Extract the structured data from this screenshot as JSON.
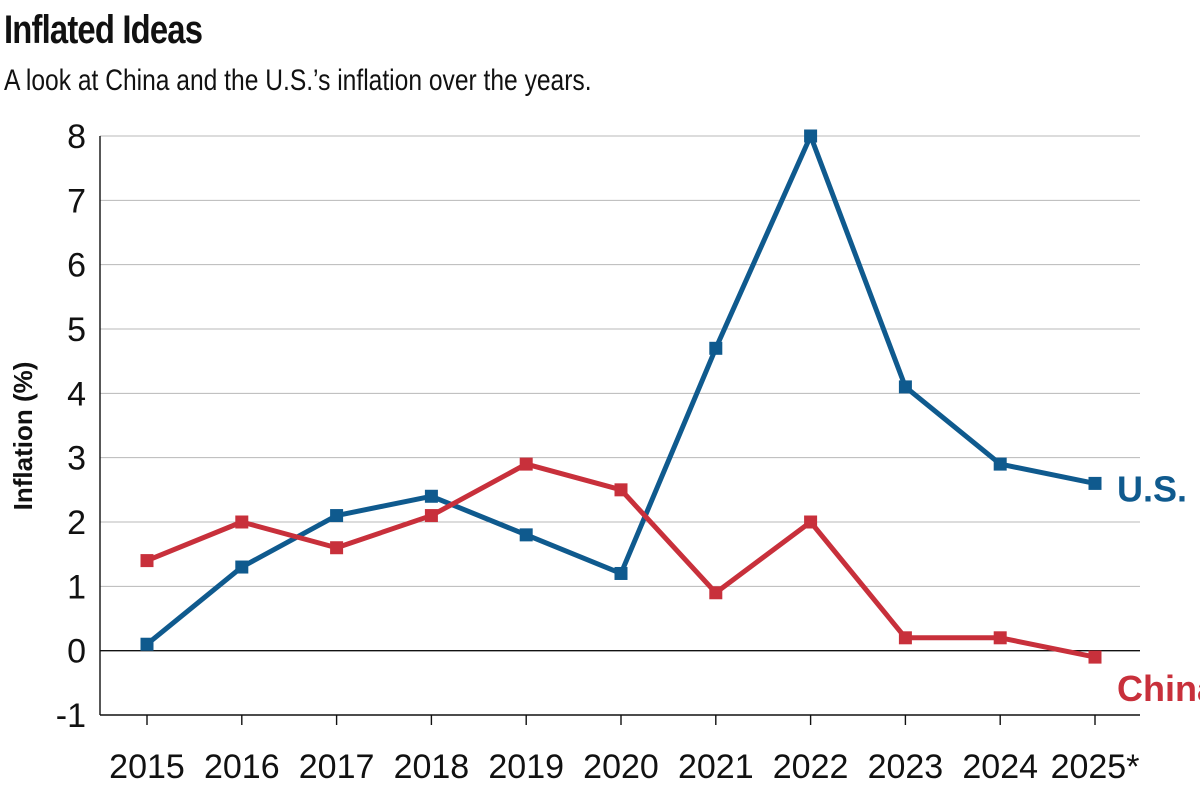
{
  "chart_data": {
    "type": "line",
    "title": "Inflated Ideas",
    "subtitle": "A look at China and the U.S.’s inflation over the years.",
    "xlabel": "",
    "ylabel": "Inflation (%)",
    "ylim": [
      -1,
      8
    ],
    "yticks": [
      "-1",
      "0",
      "1",
      "2",
      "3",
      "4",
      "5",
      "6",
      "7",
      "8"
    ],
    "grid": true,
    "categories": [
      "2015",
      "2016",
      "2017",
      "2018",
      "2019",
      "2020",
      "2021",
      "2022",
      "2023",
      "2024",
      "2025*"
    ],
    "series": [
      {
        "name": "U.S.",
        "color": "#0f5a8e",
        "values": [
          0.1,
          1.3,
          2.1,
          2.4,
          1.8,
          1.2,
          4.7,
          8.0,
          4.1,
          2.9,
          2.6
        ]
      },
      {
        "name": "China",
        "color": "#c8303b",
        "values": [
          1.4,
          2.0,
          1.6,
          2.1,
          2.9,
          2.5,
          0.9,
          2.0,
          0.2,
          0.2,
          -0.1
        ]
      }
    ]
  }
}
